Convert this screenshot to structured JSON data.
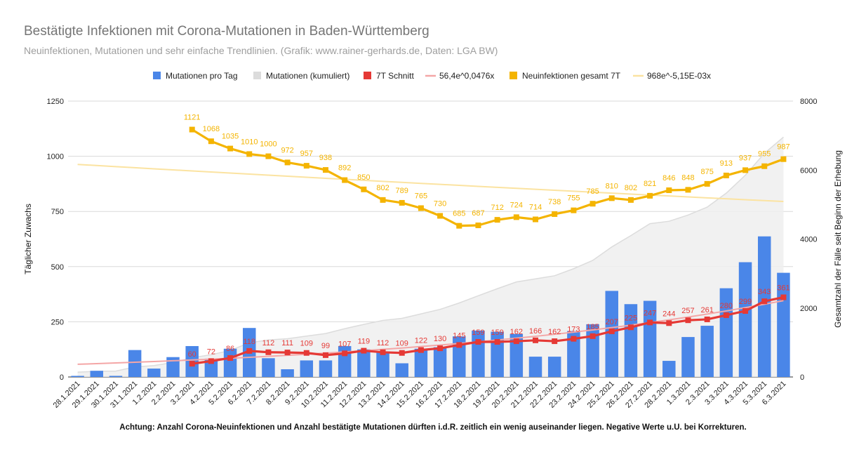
{
  "title": "Bestätigte Infektionen mit Corona-Mutationen in Baden-Württemberg",
  "subtitle": "Neuinfektionen, Mutationen und sehr einfache Trendlinien.  (Grafik: www.rainer-gerhards.de, Daten: LGA BW)",
  "footnote": "Achtung: Anzahl Corona-Neuinfektionen und Anzahl bestätigte Mutationen dürften i.d.R. zeitlich ein wenig auseinander liegen. Negative Werte u.U. bei Korrekturen.",
  "chart_data": {
    "type": "bar",
    "categories": [
      "28.1.2021",
      "29.1.2021",
      "30.1.2021",
      "31.1.2021",
      "1.2.2021",
      "2.2.2021",
      "3.2.2021",
      "4.2.2021",
      "5.2.2021",
      "6.2.2021",
      "7.2.2021",
      "8.2.2021",
      "9.2.2021",
      "10.2.2021",
      "11.2.2021",
      "12.2.2021",
      "13.2.2021",
      "14.2.2021",
      "15.2.2021",
      "16.2.2021",
      "17.2.2021",
      "18.2.2021",
      "19.2.2021",
      "20.2.2021",
      "21.2.2021",
      "22.2.2021",
      "23.2.2021",
      "24.2.2021",
      "25.2.2021",
      "26.2.2021",
      "27.2.2021",
      "28.2.2021",
      "1.3.2021",
      "2.3.2021",
      "3.3.2021",
      "4.3.2021",
      "5.3.2021",
      "6.3.2021"
    ],
    "ylabel_left": "Täglicher Zuwachs",
    "ylabel_right": "Gesamtzahl der Fälle seit Beginn der Erhebung",
    "ylim_left": [
      0,
      1250
    ],
    "yticks_left": [
      0,
      250,
      500,
      750,
      1000,
      1250
    ],
    "ylim_right": [
      0,
      8000
    ],
    "yticks_right": [
      0,
      2000,
      4000,
      6000,
      8000
    ],
    "grid": true,
    "legend_position": "top",
    "colors": {
      "bars": "#4a86e8",
      "cumulative": "#dcdcdc",
      "avg": "#e53935",
      "avg_trend": "#f4a6a6",
      "total": "#f4b400",
      "total_trend": "#fbe3a1"
    },
    "series": [
      {
        "name": "Mutationen pro Tag",
        "type": "bar",
        "axis": "left",
        "values": [
          5,
          28,
          5,
          122,
          38,
          90,
          140,
          83,
          128,
          222,
          85,
          35,
          75,
          75,
          140,
          125,
          116,
          62,
          128,
          135,
          184,
          210,
          205,
          195,
          92,
          92,
          208,
          239,
          390,
          330,
          345,
          73,
          181,
          232,
          402,
          520,
          637,
          472
        ]
      },
      {
        "name": "Mutationen (kumuliert)",
        "type": "area",
        "axis": "right",
        "values": [
          140,
          165,
          170,
          290,
          330,
          420,
          560,
          645,
          770,
          990,
          1075,
          1110,
          1185,
          1260,
          1400,
          1525,
          1640,
          1700,
          1830,
          1960,
          2145,
          2355,
          2560,
          2755,
          2845,
          2935,
          3140,
          3380,
          3770,
          4100,
          4445,
          4515,
          4695,
          4925,
          5330,
          5850,
          6485,
          6955
        ]
      },
      {
        "name": "7T Schnitt",
        "type": "line",
        "axis": "left",
        "values": [
          null,
          null,
          null,
          null,
          null,
          null,
          60,
          72,
          86,
          118,
          112,
          111,
          109,
          99,
          107,
          119,
          112,
          109,
          122,
          130,
          145,
          159,
          159,
          162,
          166,
          162,
          173,
          185,
          207,
          225,
          247,
          244,
          257,
          261,
          280,
          299,
          343,
          361
        ]
      },
      {
        "name": "56,4e^0,0476x",
        "type": "trend",
        "axis": "left",
        "from": [
          1,
          57.6
        ],
        "to": [
          38,
          346
        ]
      },
      {
        "name": "Neuinfektionen gesamt 7T",
        "type": "line",
        "axis": "left",
        "values": [
          null,
          null,
          null,
          null,
          null,
          null,
          1121,
          1068,
          1035,
          1010,
          1000,
          972,
          957,
          938,
          892,
          850,
          802,
          789,
          765,
          730,
          685,
          687,
          712,
          724,
          714,
          738,
          755,
          785,
          810,
          802,
          821,
          846,
          848,
          875,
          913,
          937,
          955,
          987
        ]
      },
      {
        "name": "968e^-5,15E-03x",
        "type": "trend",
        "axis": "left",
        "from": [
          1,
          963
        ],
        "to": [
          38,
          795
        ]
      }
    ]
  }
}
